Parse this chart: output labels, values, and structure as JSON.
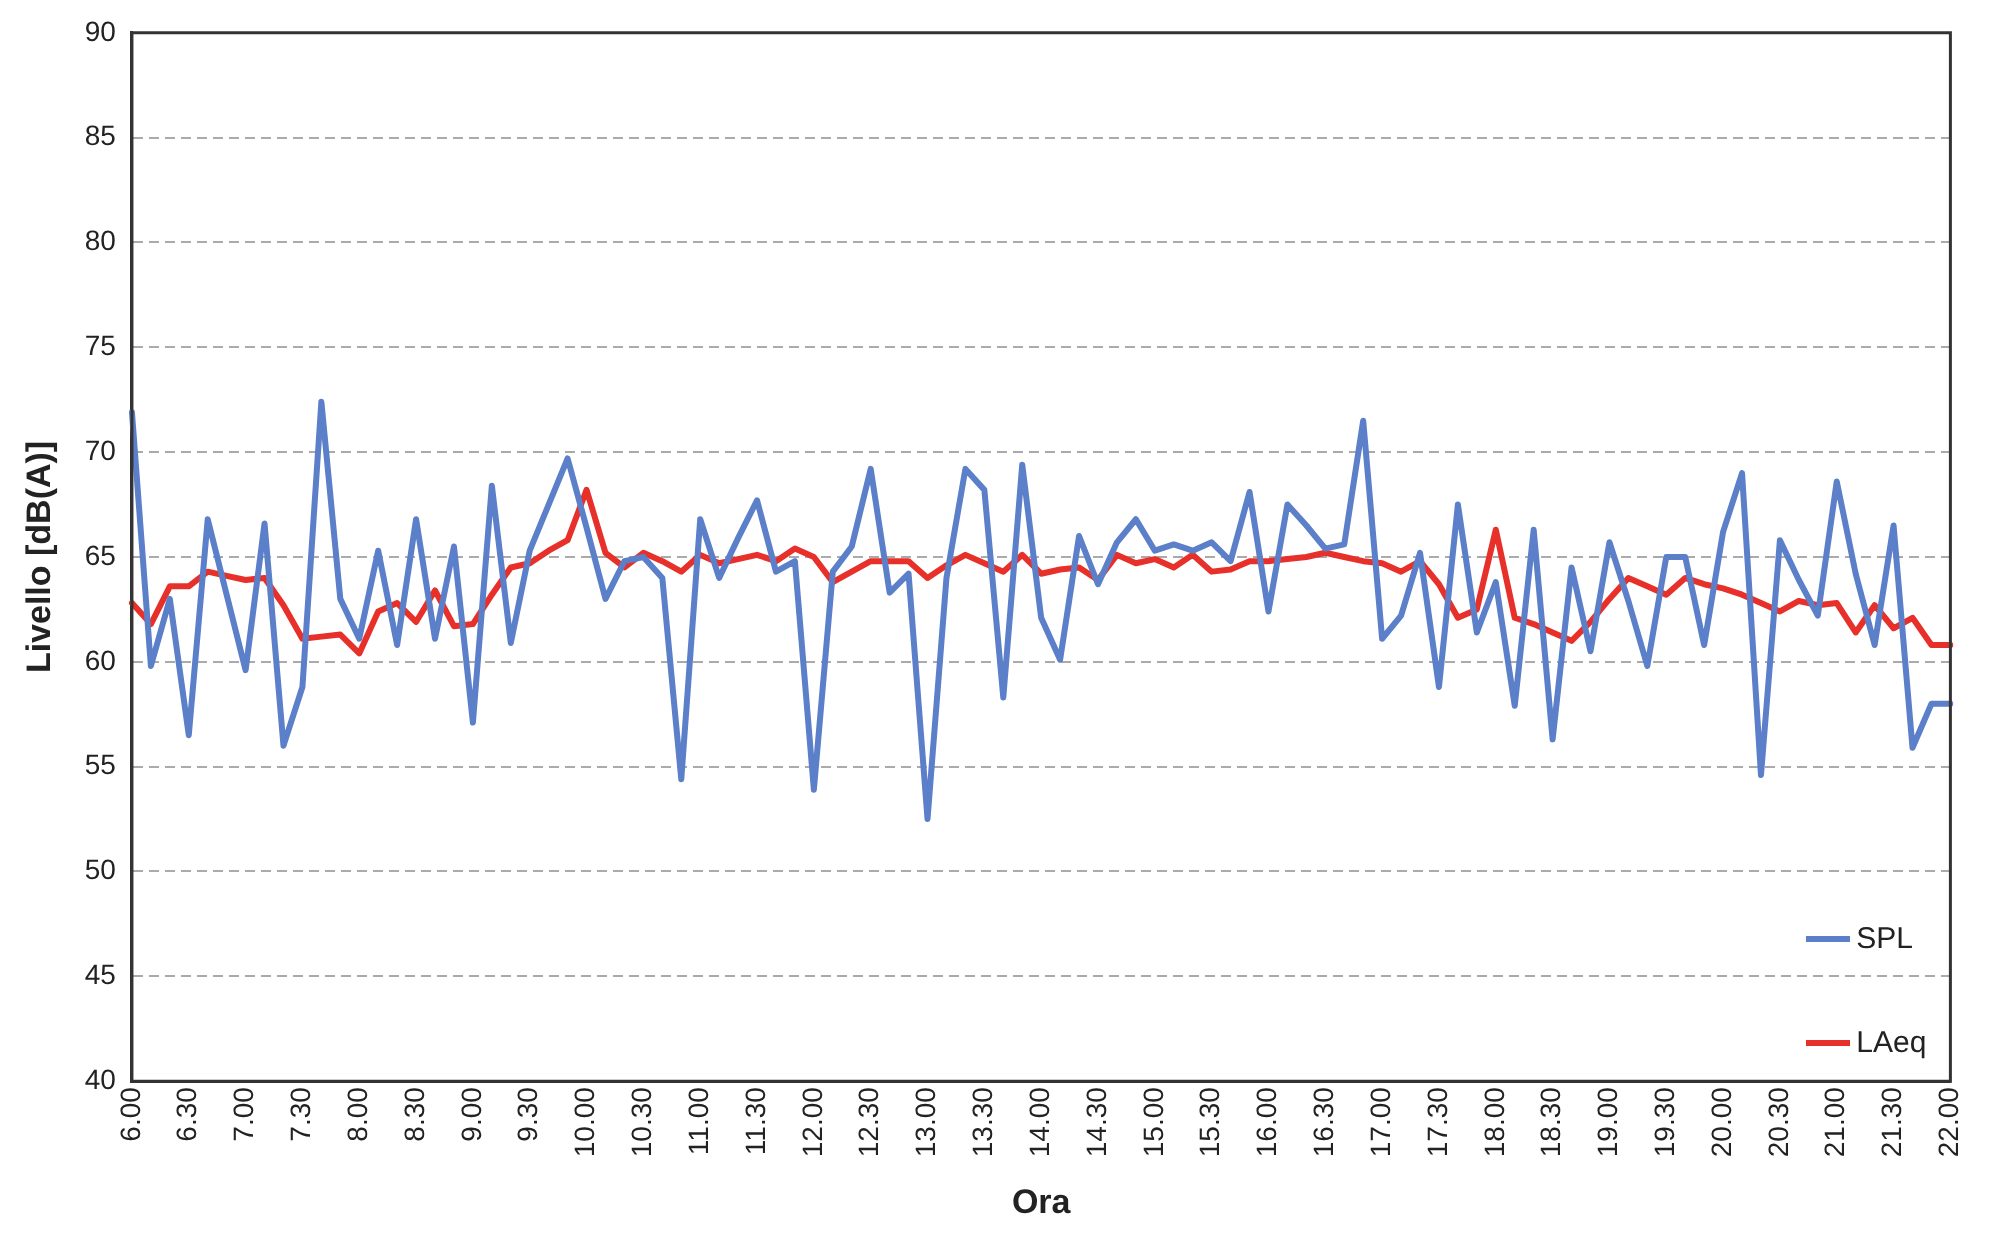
{
  "chart_data": {
    "type": "line",
    "xlabel": "Ora",
    "ylabel": "Livello [dB(A)]",
    "ylim": [
      40,
      90
    ],
    "yticks": [
      40,
      45,
      50,
      55,
      60,
      65,
      70,
      75,
      80,
      85,
      90
    ],
    "categories": [
      "6.00",
      null,
      null,
      "6.30",
      null,
      null,
      "7.00",
      null,
      null,
      "7.30",
      null,
      null,
      "8.00",
      null,
      null,
      "8.30",
      null,
      null,
      "9.00",
      null,
      null,
      "9.30",
      null,
      null,
      "10.00",
      null,
      null,
      "10.30",
      null,
      null,
      "11.00",
      null,
      null,
      "11.30",
      null,
      null,
      "12.00",
      null,
      null,
      "12.30",
      null,
      null,
      "13.00",
      null,
      null,
      "13.30",
      null,
      null,
      "14.00",
      null,
      null,
      "14.30",
      null,
      null,
      "15.00",
      null,
      null,
      "15.30",
      null,
      null,
      "16.00",
      null,
      null,
      "16.30",
      null,
      null,
      "17.00",
      null,
      null,
      "17.30",
      null,
      null,
      "18.00",
      null,
      null,
      "18.30",
      null,
      null,
      "19.00",
      null,
      null,
      "19.30",
      null,
      null,
      "20.00",
      null,
      null,
      "20.30",
      null,
      null,
      "21.00",
      null,
      null,
      "21.30",
      null,
      null,
      "22.00"
    ],
    "grid": "y",
    "legend": "bottom right",
    "marker": "none",
    "series": [
      {
        "name": "SPL",
        "color": "#5b7fc8",
        "values": [
          71.9,
          59.8,
          63.0,
          56.5,
          66.8,
          63.2,
          59.6,
          66.6,
          56.0,
          58.8,
          72.4,
          63.0,
          61.1,
          65.3,
          60.8,
          66.8,
          61.1,
          65.5,
          57.1,
          68.4,
          60.9,
          65.3,
          67.5,
          69.7,
          66.4,
          63.0,
          64.8,
          65.0,
          64.0,
          54.4,
          66.8,
          64.0,
          65.9,
          67.7,
          64.3,
          64.8,
          53.9,
          64.3,
          65.5,
          69.2,
          63.3,
          64.2,
          52.5,
          64.0,
          69.2,
          68.2,
          58.3,
          69.4,
          62.1,
          60.1,
          66.0,
          63.7,
          65.7,
          66.8,
          65.3,
          65.6,
          65.3,
          65.7,
          64.8,
          68.1,
          62.4,
          67.5,
          66.5,
          65.4,
          65.6,
          71.5,
          61.1,
          62.2,
          65.2,
          58.8,
          67.5,
          61.4,
          63.8,
          57.9,
          66.3,
          56.3,
          64.5,
          60.5,
          65.7,
          62.9,
          59.8,
          65.0,
          65.0,
          60.8,
          66.2,
          69.0,
          54.6,
          65.8,
          63.9,
          62.2,
          68.6,
          64.2,
          60.8,
          66.5,
          55.9,
          58.0,
          58.0
        ]
      },
      {
        "name": "LAeq",
        "color": "#e8302a",
        "values": [
          62.8,
          61.8,
          63.6,
          63.6,
          64.3,
          64.1,
          63.9,
          64.0,
          62.7,
          61.1,
          61.2,
          61.3,
          60.4,
          62.4,
          62.8,
          61.9,
          63.4,
          61.7,
          61.8,
          63.2,
          64.5,
          64.7,
          65.3,
          65.8,
          68.2,
          65.2,
          64.5,
          65.2,
          64.8,
          64.3,
          65.1,
          64.7,
          64.9,
          65.1,
          64.8,
          65.4,
          65.0,
          63.8,
          64.3,
          64.8,
          64.8,
          64.8,
          64.0,
          64.6,
          65.1,
          64.7,
          64.3,
          65.1,
          64.2,
          64.4,
          64.5,
          63.9,
          65.1,
          64.7,
          64.9,
          64.5,
          65.1,
          64.3,
          64.4,
          64.8,
          64.8,
          64.9,
          65.0,
          65.2,
          65.0,
          64.8,
          64.7,
          64.3,
          64.8,
          63.7,
          62.1,
          62.5,
          66.3,
          62.1,
          61.8,
          61.4,
          61.0,
          61.9,
          63.0,
          64.0,
          63.6,
          63.2,
          64.0,
          63.7,
          63.5,
          63.2,
          62.8,
          62.4,
          62.9,
          62.7,
          62.8,
          61.4,
          62.7,
          61.6,
          62.1,
          60.8,
          60.8
        ]
      }
    ]
  }
}
